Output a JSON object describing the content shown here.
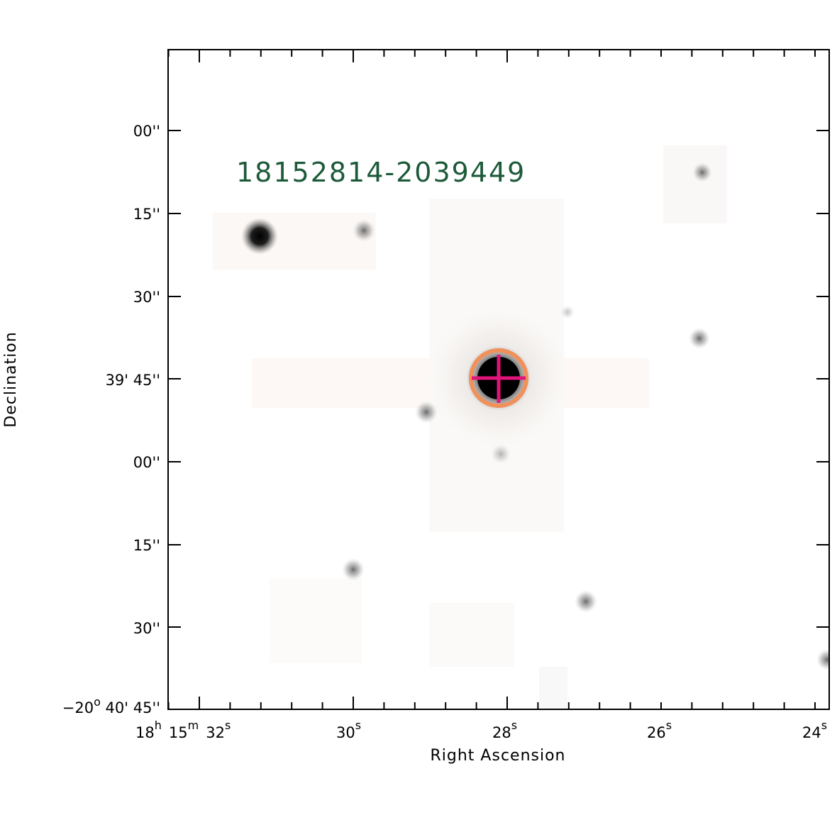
{
  "target": {
    "id": "18152814-2039449"
  },
  "ra_axis": {
    "title": "Right Ascension",
    "labels": [
      {
        "h": "18",
        "h_unit": "h",
        "m": "15",
        "m_unit": "m",
        "s": "32",
        "s_unit": "s"
      },
      {
        "s": "30",
        "s_unit": "s"
      },
      {
        "s": "28",
        "s_unit": "s"
      },
      {
        "s": "26",
        "s_unit": "s"
      },
      {
        "s": "24",
        "s_unit": "s"
      }
    ]
  },
  "dec_axis": {
    "title": "Declination",
    "labels": [
      "00''",
      "15''",
      "30''",
      "39' 45''",
      "00''",
      "15''",
      "30''"
    ],
    "bottom_label": {
      "deg": "−20",
      "deg_unit": "o",
      "rest": " 40' 45''"
    }
  },
  "colors": {
    "target_label": "#1d5a3a",
    "marker_circle": "#f0905a",
    "marker_cross": "#e0147a",
    "axes": "#000000"
  },
  "sources": [
    {
      "kind": "bright-star"
    },
    {
      "kind": "faint-star"
    },
    {
      "kind": "target-star"
    },
    {
      "kind": "faint-star"
    },
    {
      "kind": "faint-star"
    },
    {
      "kind": "faint-star"
    },
    {
      "kind": "faint-star"
    },
    {
      "kind": "faint-star"
    },
    {
      "kind": "faint-star"
    }
  ]
}
